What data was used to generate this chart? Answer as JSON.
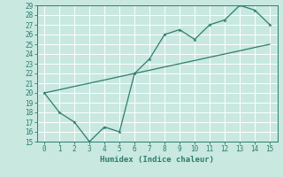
{
  "xlabel": "Humidex (Indice chaleur)",
  "x_line1": [
    0,
    1,
    2,
    3,
    4,
    5,
    6,
    7,
    8,
    9,
    10,
    11,
    12,
    13,
    14,
    15
  ],
  "y_line1": [
    20,
    18,
    17,
    15,
    16.5,
    16,
    22,
    23.5,
    26,
    26.5,
    25.5,
    27,
    27.5,
    29,
    28.5,
    27
  ],
  "x_line2": [
    0,
    1,
    2,
    3,
    4,
    5,
    6,
    7,
    8,
    9,
    10,
    11,
    12,
    13,
    14,
    15
  ],
  "y_line2": [
    20,
    20.33,
    20.67,
    21.0,
    21.33,
    21.67,
    22.0,
    22.33,
    22.67,
    23.0,
    23.33,
    23.67,
    24.0,
    24.33,
    24.67,
    25.0
  ],
  "line_color": "#2e7d6e",
  "bg_color": "#c8e8e0",
  "grid_color": "#b0d8d0",
  "ylim": [
    15,
    29
  ],
  "xlim": [
    -0.5,
    15.5
  ],
  "yticks": [
    15,
    16,
    17,
    18,
    19,
    20,
    21,
    22,
    23,
    24,
    25,
    26,
    27,
    28,
    29
  ],
  "xticks": [
    0,
    1,
    2,
    3,
    4,
    5,
    6,
    7,
    8,
    9,
    10,
    11,
    12,
    13,
    14,
    15
  ],
  "tick_fontsize": 5.5,
  "xlabel_fontsize": 6.5
}
